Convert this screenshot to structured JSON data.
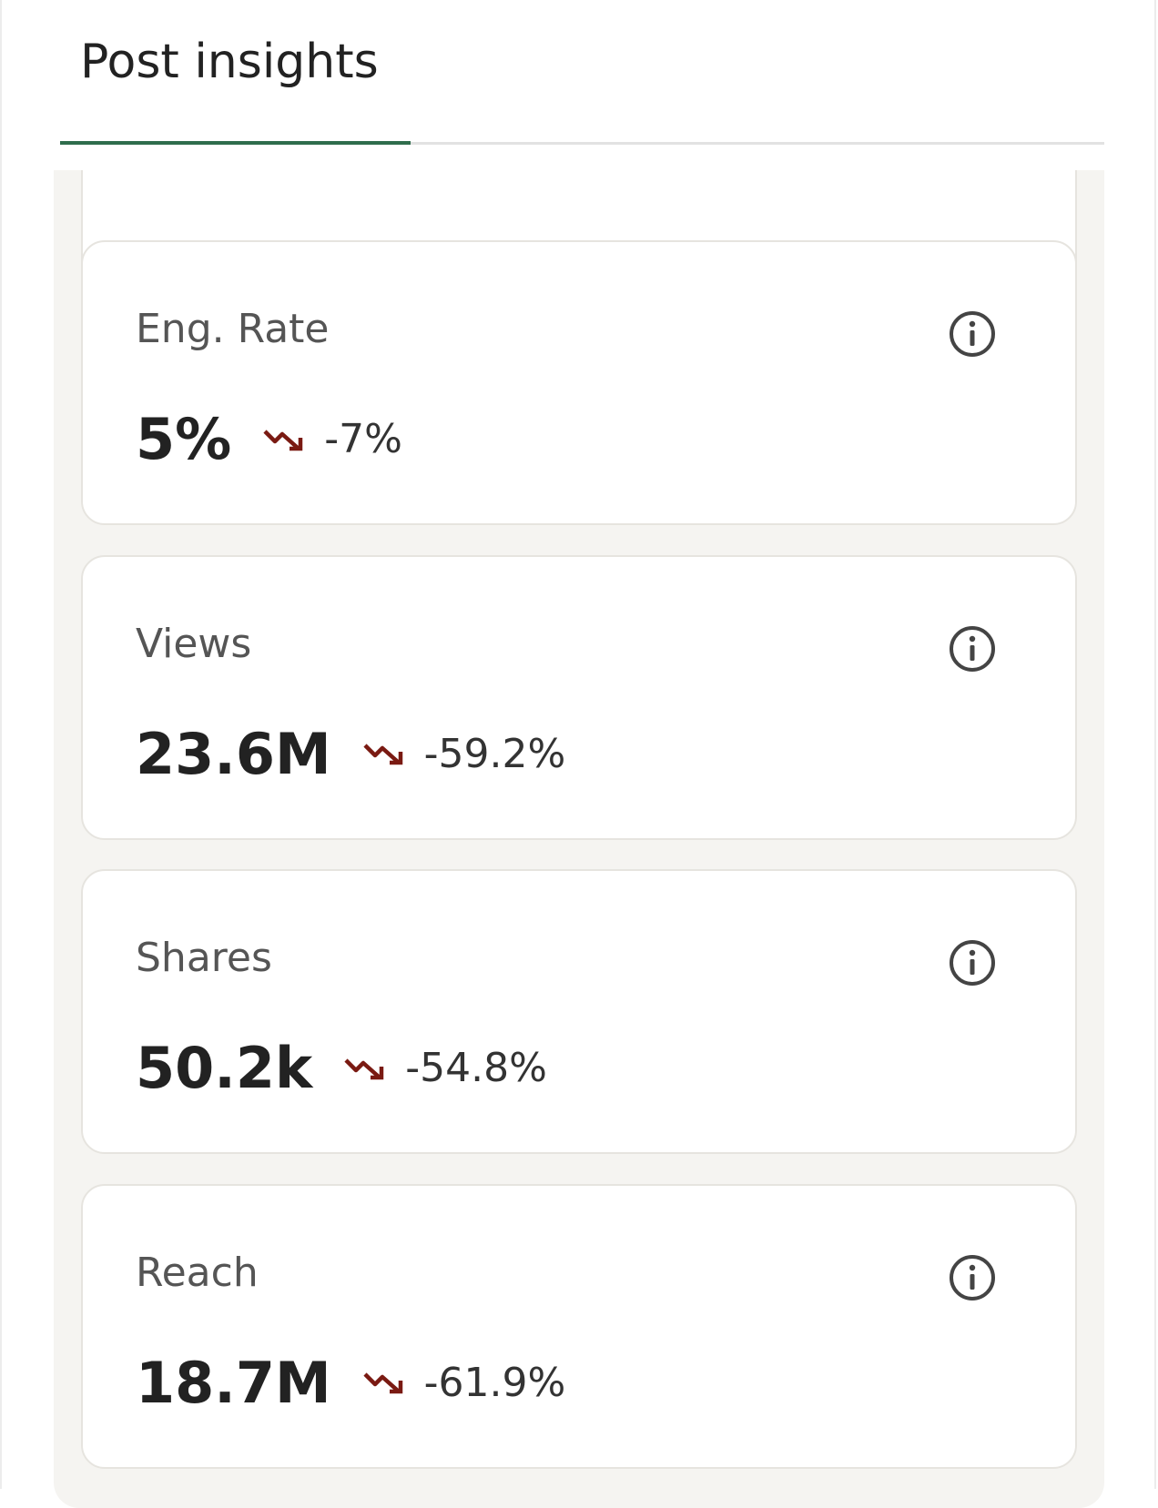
{
  "header": {
    "title": "Post insights"
  },
  "cards": [
    {
      "label": "Eng. Rate",
      "value": "5%",
      "change": "-7%"
    },
    {
      "label": "Views",
      "value": "23.6M",
      "change": "-59.2%"
    },
    {
      "label": "Shares",
      "value": "50.2k",
      "change": "-54.8%"
    },
    {
      "label": "Reach",
      "value": "18.7M",
      "change": "-61.9%"
    }
  ]
}
